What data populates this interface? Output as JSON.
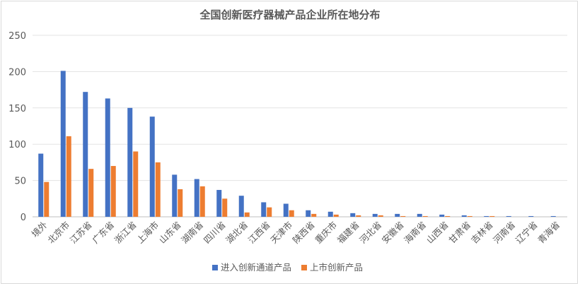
{
  "chart_data": {
    "type": "bar",
    "title": "全国创新医疗器械产品企业所在地分布",
    "xlabel": "",
    "ylabel": "",
    "ylim": [
      0,
      250
    ],
    "yticks": [
      "0",
      "50",
      "100",
      "150",
      "200",
      "250"
    ],
    "grid": true,
    "legend_position": "bottom",
    "categories": [
      "境外",
      "北京市",
      "江苏省",
      "广东省",
      "浙江省",
      "上海市",
      "山东省",
      "湖南省",
      "四川省",
      "湖北省",
      "江西省",
      "天津市",
      "陕西省",
      "重庆市",
      "福建省",
      "河北省",
      "安徽省",
      "海南省",
      "山西省",
      "甘肃省",
      "吉林省",
      "河南省",
      "辽宁省",
      "青海省"
    ],
    "series": [
      {
        "name": "进入创新通道产品",
        "color": "#4472C4",
        "values": [
          87,
          201,
          172,
          163,
          150,
          138,
          58,
          52,
          37,
          29,
          20,
          18,
          9,
          7,
          5,
          4,
          4,
          4,
          3,
          2,
          1,
          1,
          1,
          1
        ]
      },
      {
        "name": "上市创新产品",
        "color": "#ED7D31",
        "values": [
          48,
          111,
          66,
          70,
          90,
          75,
          38,
          42,
          25,
          6,
          13,
          9,
          4,
          3,
          2,
          2,
          1,
          1,
          1,
          1,
          1,
          0,
          0,
          0
        ]
      }
    ]
  }
}
